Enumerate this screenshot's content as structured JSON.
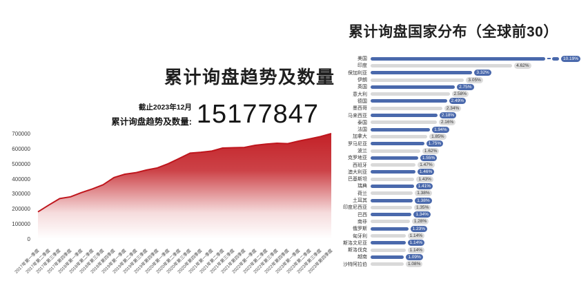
{
  "colors": {
    "accent_red": "#c32127",
    "bar_blue": "#4a69ac",
    "bar_gray": "#d9d9d9",
    "badge_gray_bg": "#dcdcdc",
    "title_text": "#1f1f1f",
    "axis_text": "#4a4a4a",
    "background": "#ffffff"
  },
  "chart_data": [
    {
      "type": "area",
      "title": "累计询盘趋势及数量",
      "annotation": {
        "asof": "截止2023年12月",
        "caption": "累计询盘趋势及数量:",
        "value": "15177847"
      },
      "x": [
        "2017年第一季度",
        "2017年第二季度",
        "2017年第三季度",
        "2017年第四季度",
        "2018年第一季度",
        "2018年第二季度",
        "2018年第三季度",
        "2018年第四季度",
        "2019年第一季度",
        "2019年第二季度",
        "2019年第三季度",
        "2019年第四季度",
        "2020年第一季度",
        "2020年第二季度",
        "2020年第三季度",
        "2020年第四季度",
        "2021年第一季度",
        "2021年第二季度",
        "2021年第三季度",
        "2021年第四季度",
        "2022年第一季度",
        "2022年第二季度",
        "2022年第三季度",
        "2022年第四季度",
        "2023年第一季度",
        "2023年第二季度",
        "2023年第三季度",
        "2023年第四季度"
      ],
      "values": [
        180000,
        225000,
        268000,
        280000,
        308000,
        332000,
        360000,
        408000,
        430000,
        440000,
        458000,
        472000,
        500000,
        535000,
        570000,
        576000,
        584000,
        604000,
        606000,
        608000,
        622000,
        630000,
        636000,
        633000,
        650000,
        665000,
        680000,
        700000
      ],
      "ylim": [
        0,
        700000
      ],
      "yticks": [
        0,
        100000,
        200000,
        300000,
        400000,
        500000,
        600000,
        700000
      ],
      "grid": false,
      "legend": "none"
    },
    {
      "type": "bar",
      "orientation": "horizontal",
      "title": "累计询盘国家分布（全球前30）",
      "categories": [
        "美国",
        "印度",
        "保加利亚",
        "伊朗",
        "英国",
        "意大利",
        "德国",
        "墨西哥",
        "马来西亚",
        "泰国",
        "法国",
        "加拿大",
        "罗马尼亚",
        "波兰",
        "克罗地亚",
        "西班牙",
        "澳大利亚",
        "巴基斯坦",
        "瑞典",
        "荷兰",
        "土耳其",
        "印度尼西亚",
        "巴西",
        "南非",
        "俄罗斯",
        "匈牙利",
        "斯洛文尼亚",
        "斯洛伐克",
        "越南",
        "沙特阿拉伯"
      ],
      "values": [
        10.19,
        4.62,
        3.32,
        3.05,
        2.75,
        2.58,
        2.49,
        2.34,
        2.18,
        2.16,
        1.94,
        1.85,
        1.75,
        1.62,
        1.55,
        1.47,
        1.46,
        1.43,
        1.41,
        1.38,
        1.38,
        1.35,
        1.34,
        1.28,
        1.23,
        1.14,
        1.14,
        1.14,
        1.09,
        1.08
      ],
      "labels": [
        "10.19%",
        "4.62%",
        "3.32%",
        "3.05%",
        "2.75%",
        "2.58%",
        "2.49%",
        "2.34%",
        "2.18%",
        "2.16%",
        "1.94%",
        "1.85%",
        "1.75%",
        "1.62%",
        "1.55%",
        "1.47%",
        "1.46%",
        "1.43%",
        "1.41%",
        "1.38%",
        "1.38%",
        "1.35%",
        "1.34%",
        "1.28%",
        "1.23%",
        "1.14%",
        "1.14%",
        "1.14%",
        "1.09%",
        "1.08%"
      ],
      "axis_break_first_bar": true,
      "bar_color_alternate": [
        "#4a69ac",
        "#d9d9d9"
      ],
      "legend": "none"
    }
  ]
}
